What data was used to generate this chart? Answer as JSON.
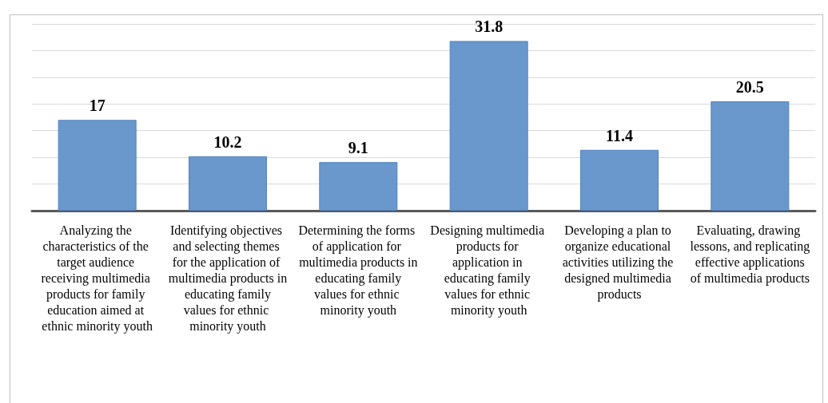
{
  "chart_data": {
    "type": "bar",
    "categories": [
      "Analyzing the characteristics of the target audience receiving multimedia products for family education aimed at ethnic minority youth",
      "Identifying objectives and selecting themes for the application of multimedia products in educating family values for ethnic minority youth",
      "Determining the forms of application for multimedia products in educating family values for ethnic minority youth",
      "Designing multimedia products for application in educating family values for ethnic minority youth",
      "Developing a plan to organize educational activities utilizing the designed multimedia products",
      "Evaluating, drawing lessons, and replicating effective applications of multimedia products"
    ],
    "values": [
      17,
      10.2,
      9.1,
      31.8,
      11.4,
      20.5
    ],
    "color": "#6a98cd",
    "ylim": [
      0,
      35
    ],
    "yticks": [
      {
        "value": 0,
        "label": null
      },
      {
        "value": 5,
        "label": null
      },
      {
        "value": 10,
        "label": null
      },
      {
        "value": 15,
        "label": null
      },
      {
        "value": 20,
        "label": null
      },
      {
        "value": 25,
        "label": null
      },
      {
        "value": 30,
        "label": null
      },
      {
        "value": 35,
        "label": null
      }
    ],
    "grid": "y",
    "tick_labels": "x",
    "data_labels": true
  }
}
